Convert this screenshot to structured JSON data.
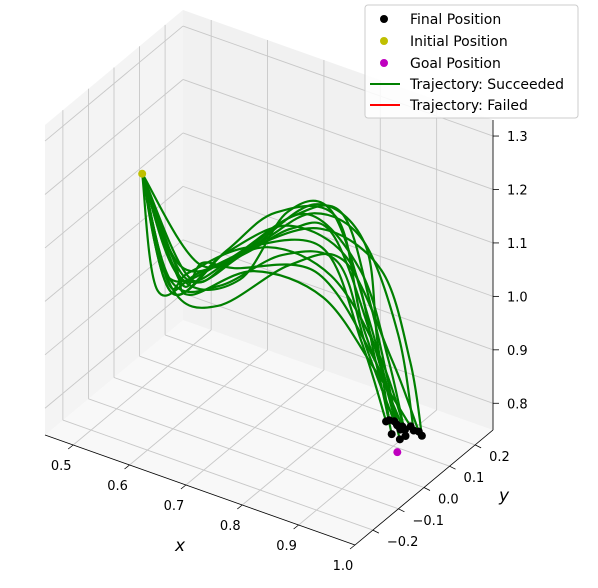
{
  "chart_data": {
    "type": "line",
    "subtype": "3d-trajectory",
    "xlabel": "x",
    "ylabel": "y",
    "zlabel": "",
    "xlim": [
      0.45,
      1.0
    ],
    "ylim": [
      -0.27,
      0.27
    ],
    "zlim": [
      0.75,
      1.33
    ],
    "x_ticks": [
      "0.5",
      "0.6",
      "0.7",
      "0.8",
      "0.9",
      "1.0"
    ],
    "y_ticks": [
      "−0.2",
      "−0.1",
      "0.0",
      "0.1",
      "0.2"
    ],
    "z_ticks": [
      "0.8",
      "0.9",
      "1.0",
      "1.1",
      "1.2",
      "1.3"
    ],
    "grid": true,
    "legend_position": "top-right",
    "legend": [
      {
        "label": "Final Position",
        "marker": "dot",
        "color": "#000000"
      },
      {
        "label": "Initial Position",
        "marker": "dot",
        "color": "#bfbf00"
      },
      {
        "label": "Goal Position",
        "marker": "dot",
        "color": "#bf00bf"
      },
      {
        "label": "Trajectory: Succeeded",
        "marker": "line",
        "color": "#008000"
      },
      {
        "label": "Trajectory: Failed",
        "marker": "line",
        "color": "#ff0000"
      }
    ],
    "initial_position": {
      "x": 0.5,
      "y": 0.0,
      "z": 1.15
    },
    "goal_position": {
      "x": 0.93,
      "y": 0.05,
      "z": 0.77
    },
    "final_positions": [
      {
        "x": 0.92,
        "y": 0.06,
        "z": 0.82
      },
      {
        "x": 0.93,
        "y": 0.07,
        "z": 0.81
      },
      {
        "x": 0.94,
        "y": 0.08,
        "z": 0.81
      },
      {
        "x": 0.92,
        "y": 0.04,
        "z": 0.83
      },
      {
        "x": 0.95,
        "y": 0.09,
        "z": 0.8
      },
      {
        "x": 0.93,
        "y": 0.05,
        "z": 0.82
      },
      {
        "x": 0.94,
        "y": 0.06,
        "z": 0.8
      },
      {
        "x": 0.91,
        "y": 0.05,
        "z": 0.82
      },
      {
        "x": 0.95,
        "y": 0.07,
        "z": 0.81
      },
      {
        "x": 0.93,
        "y": 0.08,
        "z": 0.8
      },
      {
        "x": 0.92,
        "y": 0.07,
        "z": 0.81
      },
      {
        "x": 0.94,
        "y": 0.04,
        "z": 0.82
      },
      {
        "x": 0.96,
        "y": 0.08,
        "z": 0.8
      },
      {
        "x": 0.93,
        "y": 0.06,
        "z": 0.79
      },
      {
        "x": 0.92,
        "y": 0.05,
        "z": 0.8
      }
    ],
    "series": [
      {
        "name": "Trajectory: Succeeded",
        "color": "#008000",
        "trajectories": [
          [
            [
              0.5,
              0.0,
              1.15
            ],
            [
              0.56,
              -0.02,
              0.98
            ],
            [
              0.66,
              -0.05,
              1.02
            ],
            [
              0.74,
              0.02,
              1.08
            ],
            [
              0.82,
              0.06,
              1.08
            ],
            [
              0.88,
              0.04,
              0.95
            ],
            [
              0.92,
              0.06,
              0.82
            ]
          ],
          [
            [
              0.5,
              0.0,
              1.15
            ],
            [
              0.57,
              -0.04,
              0.97
            ],
            [
              0.64,
              0.02,
              1.05
            ],
            [
              0.7,
              0.08,
              1.12
            ],
            [
              0.8,
              0.1,
              1.14
            ],
            [
              0.87,
              0.05,
              0.98
            ],
            [
              0.93,
              0.07,
              0.81
            ]
          ],
          [
            [
              0.5,
              0.0,
              1.15
            ],
            [
              0.55,
              0.02,
              0.99
            ],
            [
              0.62,
              -0.08,
              1.0
            ],
            [
              0.72,
              -0.05,
              1.07
            ],
            [
              0.83,
              -0.02,
              1.05
            ],
            [
              0.9,
              0.03,
              0.92
            ],
            [
              0.94,
              0.08,
              0.81
            ]
          ],
          [
            [
              0.5,
              0.0,
              1.15
            ],
            [
              0.56,
              0.04,
              0.96
            ],
            [
              0.65,
              0.06,
              1.03
            ],
            [
              0.76,
              0.1,
              1.15
            ],
            [
              0.84,
              0.12,
              1.1
            ],
            [
              0.89,
              0.06,
              0.96
            ],
            [
              0.92,
              0.04,
              0.83
            ]
          ],
          [
            [
              0.5,
              0.0,
              1.15
            ],
            [
              0.58,
              -0.06,
              0.99
            ],
            [
              0.68,
              -0.1,
              1.01
            ],
            [
              0.78,
              -0.04,
              1.1
            ],
            [
              0.86,
              0.0,
              1.12
            ],
            [
              0.92,
              0.05,
              0.94
            ],
            [
              0.95,
              0.09,
              0.8
            ]
          ],
          [
            [
              0.5,
              0.0,
              1.15
            ],
            [
              0.55,
              -0.01,
              0.98
            ],
            [
              0.63,
              0.04,
              1.02
            ],
            [
              0.71,
              0.12,
              1.1
            ],
            [
              0.79,
              0.14,
              1.13
            ],
            [
              0.86,
              0.1,
              1.0
            ],
            [
              0.93,
              0.05,
              0.82
            ]
          ],
          [
            [
              0.5,
              0.0,
              1.15
            ],
            [
              0.57,
              0.03,
              0.97
            ],
            [
              0.67,
              -0.02,
              1.06
            ],
            [
              0.77,
              0.04,
              1.16
            ],
            [
              0.85,
              0.08,
              1.07
            ],
            [
              0.91,
              0.06,
              0.93
            ],
            [
              0.94,
              0.06,
              0.8
            ]
          ],
          [
            [
              0.5,
              0.0,
              1.15
            ],
            [
              0.56,
              -0.03,
              0.98
            ],
            [
              0.61,
              -0.06,
              1.03
            ],
            [
              0.69,
              -0.02,
              1.09
            ],
            [
              0.81,
              0.02,
              1.12
            ],
            [
              0.88,
              0.02,
              0.97
            ],
            [
              0.91,
              0.05,
              0.82
            ]
          ],
          [
            [
              0.5,
              0.0,
              1.15
            ],
            [
              0.58,
              0.05,
              0.99
            ],
            [
              0.66,
              0.1,
              1.04
            ],
            [
              0.74,
              0.14,
              1.11
            ],
            [
              0.82,
              0.16,
              1.08
            ],
            [
              0.9,
              0.12,
              0.95
            ],
            [
              0.95,
              0.07,
              0.81
            ]
          ],
          [
            [
              0.5,
              0.0,
              1.15
            ],
            [
              0.55,
              -0.05,
              0.97
            ],
            [
              0.64,
              -0.08,
              1.05
            ],
            [
              0.75,
              -0.06,
              1.13
            ],
            [
              0.84,
              -0.01,
              1.09
            ],
            [
              0.9,
              0.04,
              0.95
            ],
            [
              0.93,
              0.08,
              0.8
            ]
          ],
          [
            [
              0.5,
              0.0,
              1.15
            ],
            [
              0.57,
              0.0,
              0.98
            ],
            [
              0.66,
              0.03,
              1.0
            ],
            [
              0.73,
              0.06,
              1.14
            ],
            [
              0.8,
              0.08,
              1.16
            ],
            [
              0.87,
              0.07,
              0.99
            ],
            [
              0.92,
              0.07,
              0.81
            ]
          ],
          [
            [
              0.5,
              0.0,
              1.15
            ],
            [
              0.56,
              0.02,
              0.96
            ],
            [
              0.62,
              -0.03,
              1.04
            ],
            [
              0.7,
              -0.08,
              1.08
            ],
            [
              0.83,
              -0.05,
              1.11
            ],
            [
              0.91,
              0.0,
              0.96
            ],
            [
              0.94,
              0.04,
              0.82
            ]
          ],
          [
            [
              0.5,
              0.0,
              1.15
            ],
            [
              0.58,
              -0.02,
              0.99
            ],
            [
              0.68,
              0.02,
              1.07
            ],
            [
              0.78,
              0.08,
              1.12
            ],
            [
              0.87,
              0.12,
              1.06
            ],
            [
              0.93,
              0.1,
              0.92
            ],
            [
              0.96,
              0.08,
              0.8
            ]
          ],
          [
            [
              0.5,
              0.0,
              1.15
            ],
            [
              0.55,
              0.04,
              0.98
            ],
            [
              0.63,
              0.08,
              1.01
            ],
            [
              0.72,
              0.1,
              1.09
            ],
            [
              0.81,
              0.06,
              1.13
            ],
            [
              0.89,
              0.04,
              0.97
            ],
            [
              0.93,
              0.06,
              0.79
            ]
          ],
          [
            [
              0.5,
              0.0,
              1.15
            ],
            [
              0.57,
              -0.04,
              0.97
            ],
            [
              0.65,
              -0.01,
              1.06
            ],
            [
              0.76,
              0.0,
              1.15
            ],
            [
              0.85,
              0.04,
              1.1
            ],
            [
              0.9,
              0.03,
              0.94
            ],
            [
              0.92,
              0.05,
              0.8
            ]
          ]
        ]
      },
      {
        "name": "Trajectory: Failed",
        "color": "#ff0000",
        "trajectories": []
      }
    ]
  }
}
